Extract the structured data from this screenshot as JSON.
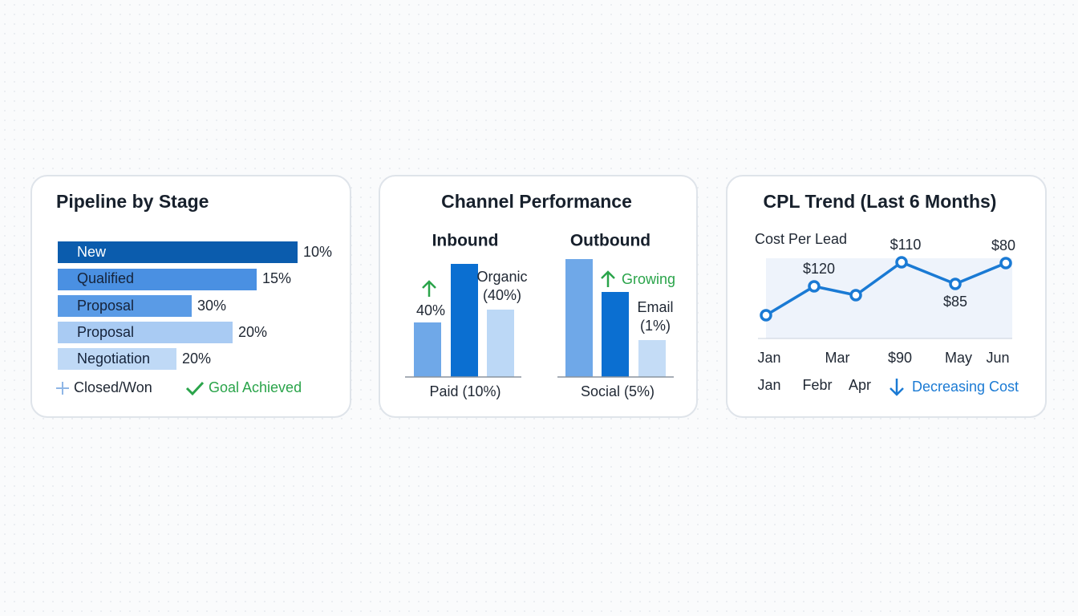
{
  "cards": [
    {
      "title": "Pipeline by Stage",
      "stages": [
        {
          "label": "New",
          "value_label": "10%"
        },
        {
          "label": "Qualified",
          "value_label": "15%"
        },
        {
          "label": "Proposal",
          "value_label": "30%"
        },
        {
          "label": "Proposal",
          "value_label": "20%"
        },
        {
          "label": "Negotiation",
          "value_label": "20%"
        }
      ],
      "footer": {
        "left": "Closed/Won",
        "right": "Goal Achieved"
      }
    },
    {
      "title": "Channel Performance",
      "inbound": {
        "title": "Inbound",
        "note": "40%",
        "organic": "Organic",
        "organic_value": "(40%)",
        "caption": "Paid (10%)"
      },
      "outbound": {
        "title": "Outbound",
        "note": "Growing",
        "email": "Email",
        "email_value": "(1%)",
        "caption": "Social (5%)"
      }
    },
    {
      "title": "CPL Trend (Last 6 Months)",
      "subtitle": "Cost Per Lead",
      "point_labels": [
        "$120",
        "$110",
        "$85",
        "$80"
      ],
      "axis_row1": [
        "Jan",
        "Mar",
        "$90",
        "May",
        "Jun"
      ],
      "axis_row2": [
        "Jan",
        "Febr",
        "Apr"
      ],
      "trend": "Decreasing Cost"
    }
  ]
}
